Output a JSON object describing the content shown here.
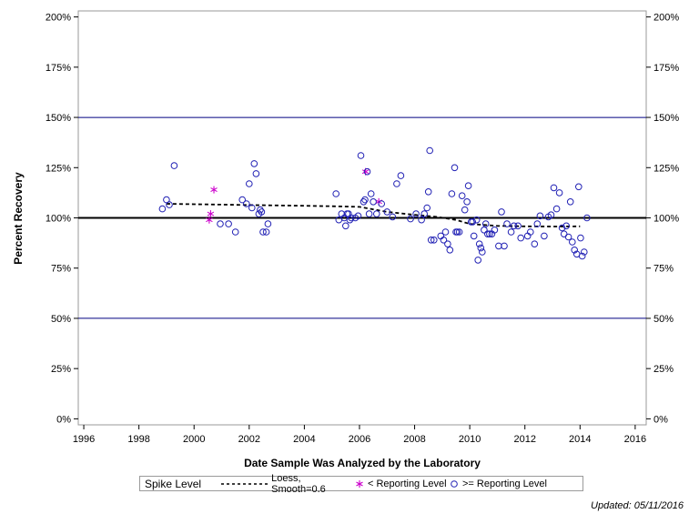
{
  "chart_data": {
    "type": "scatter",
    "xlabel": "Date Sample Was Analyzed by the Laboratory",
    "ylabel": "Percent Recovery",
    "xlim": [
      1995.8,
      2016.4
    ],
    "ylim": [
      -3,
      203
    ],
    "x_ticks": [
      1996,
      1998,
      2000,
      2002,
      2004,
      2006,
      2008,
      2010,
      2012,
      2014,
      2016
    ],
    "y_ticks": [
      0,
      25,
      50,
      75,
      100,
      125,
      150,
      175,
      200
    ],
    "y_tick_suffix": "%",
    "reference_lines": [
      {
        "y": 100,
        "style": "bold"
      },
      {
        "y": 50,
        "style": "thin"
      },
      {
        "y": 150,
        "style": "thin"
      }
    ],
    "grid": false,
    "right_axis_mirror": true,
    "legend": {
      "position": "bottom",
      "title": "Spike Level",
      "entries": [
        "Loess, Smooth=0.6",
        "< Reporting Level",
        ">= Reporting Level"
      ]
    },
    "colors": {
      "circles": "#2020b4",
      "stars": "#cc00cc",
      "reference": "#000080",
      "loess": "#000000"
    },
    "series": [
      {
        "name": "Loess, Smooth=0.6",
        "type": "line",
        "style": "dashed",
        "x": [
          1999.0,
          2000.0,
          2001.0,
          2002.0,
          2003.0,
          2004.0,
          2005.0,
          2006.0,
          2007.0,
          2008.0,
          2008.8,
          2009.5,
          2010.0,
          2011.0,
          2012.0,
          2013.0,
          2014.0
        ],
        "y": [
          107,
          106.8,
          106.6,
          106.4,
          106.2,
          106.0,
          105.8,
          105.5,
          103,
          101.5,
          100.5,
          99,
          97,
          96,
          95.8,
          95.7,
          95.8
        ]
      },
      {
        "name": "< Reporting Level",
        "type": "scatter",
        "marker": "star",
        "x": [
          2000.55,
          2000.6,
          2000.72,
          2006.22,
          2006.7
        ],
        "y": [
          99,
          102,
          114,
          123,
          108
        ]
      },
      {
        "name": ">= Reporting Level",
        "type": "scatter",
        "marker": "circle",
        "x": [
          1998.85,
          1999.0,
          1999.1,
          1999.28,
          2000.95,
          2001.25,
          2001.5,
          2001.75,
          2001.9,
          2002.0,
          2002.1,
          2002.18,
          2002.25,
          2002.35,
          2002.4,
          2002.45,
          2002.5,
          2002.62,
          2002.68,
          2005.15,
          2005.25,
          2005.35,
          2005.45,
          2005.5,
          2005.55,
          2005.6,
          2005.65,
          2005.7,
          2005.85,
          2005.95,
          2006.05,
          2006.15,
          2006.2,
          2006.28,
          2006.35,
          2006.42,
          2006.5,
          2006.62,
          2006.8,
          2007.0,
          2007.2,
          2007.35,
          2007.5,
          2007.85,
          2008.05,
          2008.25,
          2008.35,
          2008.45,
          2008.5,
          2008.55,
          2008.6,
          2008.7,
          2008.95,
          2009.05,
          2009.12,
          2009.2,
          2009.28,
          2009.35,
          2009.45,
          2009.5,
          2009.55,
          2009.62,
          2009.72,
          2009.82,
          2009.9,
          2009.95,
          2010.05,
          2010.1,
          2010.15,
          2010.25,
          2010.3,
          2010.35,
          2010.4,
          2010.45,
          2010.52,
          2010.58,
          2010.65,
          2010.72,
          2010.8,
          2010.9,
          2011.05,
          2011.15,
          2011.25,
          2011.35,
          2011.5,
          2011.6,
          2011.75,
          2011.85,
          2012.1,
          2012.2,
          2012.35,
          2012.45,
          2012.55,
          2012.7,
          2012.85,
          2012.95,
          2013.05,
          2013.15,
          2013.25,
          2013.35,
          2013.42,
          2013.5,
          2013.58,
          2013.65,
          2013.72,
          2013.8,
          2013.88,
          2013.95,
          2014.02,
          2014.08,
          2014.15,
          2014.25
        ],
        "y": [
          104.5,
          109,
          106.5,
          126,
          97,
          97,
          93,
          109,
          107,
          117,
          105,
          127,
          122,
          102,
          104,
          103,
          93,
          93,
          97,
          112,
          99,
          102,
          100,
          96,
          102,
          102,
          99,
          100,
          100,
          101,
          131,
          108,
          109,
          123,
          102,
          112,
          108,
          102,
          107,
          103,
          100.5,
          117,
          121,
          99.5,
          102,
          99,
          102,
          105,
          113,
          133.5,
          89,
          89,
          91,
          89,
          93,
          87,
          84,
          112,
          125,
          93,
          93,
          93,
          111,
          104,
          108,
          116,
          98,
          98,
          91,
          99,
          79,
          87,
          85,
          83,
          94,
          97,
          92,
          92,
          92,
          94,
          86,
          103,
          86,
          97,
          93,
          96,
          96,
          90,
          91,
          93,
          87,
          97,
          101,
          91,
          100.5,
          101.5,
          115,
          104.5,
          112.5,
          95,
          92,
          96,
          90.5,
          108,
          88,
          84,
          82,
          115.5,
          90,
          81,
          83,
          100
        ]
      }
    ]
  },
  "legend": {
    "title": "Spike Level",
    "loess_label": "Loess, Smooth=0.6",
    "below_label": "< Reporting Level",
    "above_label": ">= Reporting Level"
  },
  "footer": {
    "updated": "Updated: 05/11/2016"
  }
}
